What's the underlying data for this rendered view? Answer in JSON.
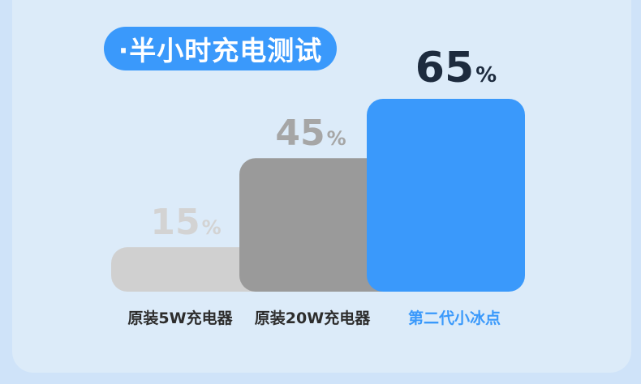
{
  "title": "·半小时充电测试",
  "colors": {
    "accent": "#3a99fb",
    "bar_1": "#d0d0d0",
    "bar_2": "#9a9a9a",
    "bar_3": "#3a99fb"
  },
  "chart_data": {
    "type": "bar",
    "title": "·半小时充电测试",
    "categories": [
      "原装5W充电器",
      "原装20W充电器",
      "第二代小冰点"
    ],
    "values": [
      15,
      45,
      65
    ],
    "unit": "%",
    "value_labels": [
      "15",
      "45",
      "65"
    ],
    "highlight_index": 2,
    "bar_colors": [
      "#d0d0d0",
      "#9a9a9a",
      "#3a99fb"
    ],
    "label_colors": [
      "#d3d3d3",
      "#a6a6a6",
      "#1d2b3e"
    ],
    "xlabel": "",
    "ylabel": "",
    "ylim": [
      0,
      65
    ],
    "grid": false
  }
}
